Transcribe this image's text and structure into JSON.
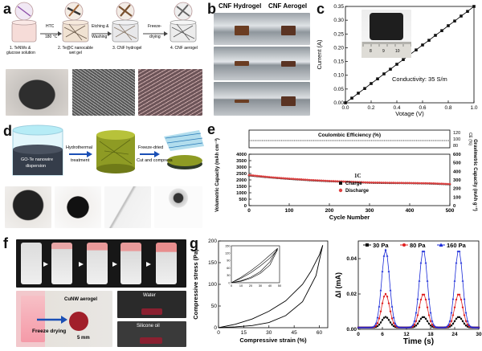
{
  "panels": {
    "a": {
      "letter": "a",
      "steps": [
        "1. TeNWs &",
        "glucose solution",
        "2. Te@C nanocable",
        "wet gel",
        "3. CNF hydrogel",
        "4. CNF aerogel"
      ],
      "arrows": [
        "HTC",
        "180 °C",
        "Etching &",
        "Washing",
        "Freeze-",
        "drying"
      ]
    },
    "b": {
      "letter": "b",
      "col1": "CNF Hydrogel",
      "col2": "CNF Aerogel"
    },
    "c": {
      "letter": "c",
      "conductivity": "Conductivity: 35 S/m",
      "ruler_ticks": [
        "8",
        "9",
        "10"
      ]
    },
    "d": {
      "letter": "d",
      "beaker_label": [
        "GO-Te nanowire",
        "dispersion"
      ],
      "arrow1": [
        "Hydrothermal",
        "treatment"
      ],
      "arrow2": [
        "Freeze-dried",
        "Cut and compress"
      ]
    },
    "e": {
      "letter": "e",
      "rate_label": "1C"
    },
    "f": {
      "letter": "f",
      "aerogel_label": "CuNW aerogel",
      "freeze_label": "Freeze drying",
      "scale_label": "5 mm",
      "water_label": "Water",
      "oil_label": "Silicone oil"
    },
    "g": {
      "letter": "g"
    }
  },
  "colors": {
    "red_series": "#e02020",
    "black_series": "#111111",
    "blue_series": "#1a2ad8",
    "charge": "#111111",
    "discharge": "#e04040"
  },
  "chart_data": [
    {
      "id": "c",
      "type": "line",
      "xlabel": "Votage (V)",
      "ylabel": "Current (A)",
      "xlim": [
        0.0,
        1.0
      ],
      "ylim": [
        0.0,
        0.35
      ],
      "xticks": [
        "0.0",
        "0.2",
        "0.4",
        "0.6",
        "0.8",
        "1.0"
      ],
      "yticks": [
        "0.00",
        "0.05",
        "0.10",
        "0.15",
        "0.20",
        "0.25",
        "0.30",
        "0.35"
      ],
      "x": [
        0.0,
        0.05,
        0.1,
        0.15,
        0.2,
        0.25,
        0.3,
        0.35,
        0.4,
        0.45,
        0.5,
        0.55,
        0.6,
        0.65,
        0.7,
        0.75,
        0.8,
        0.85,
        0.9,
        0.95,
        1.0
      ],
      "y": [
        0.0,
        0.017,
        0.035,
        0.052,
        0.07,
        0.087,
        0.105,
        0.122,
        0.14,
        0.157,
        0.175,
        0.192,
        0.21,
        0.227,
        0.245,
        0.262,
        0.28,
        0.297,
        0.315,
        0.332,
        0.35
      ]
    },
    {
      "id": "e",
      "type": "scatter",
      "xlabel": "Cycle Number",
      "ylabel": "Volumetric Capacity (mAh cm⁻³)",
      "ylabel_right": "Gravimetric Capacity (mAh g⁻¹)",
      "ylabel_top": "Coulombic Efficiency (%)",
      "ylabel_top_abbrev": "CE (%)",
      "xlim": [
        0,
        500
      ],
      "ylim": [
        0,
        4000
      ],
      "xticks": [
        "0",
        "100",
        "200",
        "300",
        "400",
        "500"
      ],
      "yticks": [
        "0",
        "500",
        "1000",
        "1500",
        "2000",
        "2500",
        "3000",
        "3500",
        "4000"
      ],
      "yticks_right": [
        "0",
        "100",
        "200",
        "300",
        "400",
        "500",
        "600"
      ],
      "yticks_top": [
        "80",
        "100",
        "120"
      ],
      "series": [
        {
          "name": "Charge",
          "x": [
            0,
            50,
            100,
            150,
            200,
            250,
            300,
            350,
            400,
            450,
            500
          ],
          "y": [
            2350,
            2200,
            2080,
            1980,
            1900,
            1850,
            1780,
            1760,
            1750,
            1720,
            1660
          ]
        },
        {
          "name": "Discharge",
          "x": [
            0,
            50,
            100,
            150,
            200,
            250,
            300,
            350,
            400,
            450,
            500
          ],
          "y": [
            2380,
            2220,
            2100,
            2000,
            1920,
            1860,
            1800,
            1780,
            1760,
            1740,
            1680
          ]
        }
      ],
      "coulombic_efficiency": 100
    },
    {
      "id": "g1",
      "type": "line",
      "xlabel": "Compressive strain (%)",
      "ylabel": "Compressive stress (Pa)",
      "xlim": [
        0,
        65
      ],
      "ylim": [
        0,
        200
      ],
      "xticks": [
        "0",
        "15",
        "30",
        "45",
        "60"
      ],
      "yticks": [
        "0",
        "50",
        "100",
        "150",
        "200"
      ],
      "loading": {
        "x": [
          0,
          10,
          20,
          30,
          40,
          50,
          55,
          60,
          62
        ],
        "y": [
          0,
          8,
          20,
          38,
          62,
          100,
          130,
          168,
          190
        ]
      },
      "unloading": {
        "x": [
          62,
          58,
          50,
          40,
          30,
          20,
          10,
          5,
          0
        ],
        "y": [
          190,
          120,
          60,
          28,
          12,
          5,
          2,
          1,
          0
        ]
      },
      "inset": {
        "xlim": [
          0,
          50
        ],
        "ylim": [
          0,
          150
        ],
        "xticks": [
          "0",
          "10",
          "20",
          "30",
          "40",
          "50"
        ],
        "yticks": [
          "0",
          "30",
          "60",
          "90",
          "120",
          "150"
        ],
        "loops": [
          {
            "load_x": [
              0,
              10,
              20,
              30,
              40,
              48
            ],
            "load_y": [
              0,
              18,
              40,
              68,
              100,
              135
            ],
            "unload_x": [
              48,
              40,
              30,
              20,
              10,
              0
            ],
            "unload_y": [
              135,
              72,
              38,
              18,
              6,
              0
            ]
          },
          {
            "load_x": [
              0,
              10,
              20,
              30,
              40,
              48
            ],
            "load_y": [
              0,
              22,
              48,
              78,
              112,
              140
            ],
            "unload_x": [
              48,
              40,
              30,
              20,
              10,
              0
            ],
            "unload_y": [
              140,
              85,
              45,
              22,
              8,
              0
            ]
          }
        ]
      }
    },
    {
      "id": "g2",
      "type": "line",
      "xlabel": "Time (s)",
      "ylabel": "ΔI (mA)",
      "xlim": [
        0,
        30
      ],
      "ylim": [
        0,
        0.05
      ],
      "xticks": [
        "0",
        "6",
        "12",
        "18",
        "24",
        "30"
      ],
      "yticks": [
        "0.00",
        "0.02",
        "0.04"
      ],
      "legend": [
        "30 Pa",
        "80 Pa",
        "160 Pa"
      ],
      "peaks_x": [
        6.8,
        16.2,
        25.0
      ],
      "peak_heights": [
        0.006,
        0.019,
        0.044
      ]
    }
  ]
}
